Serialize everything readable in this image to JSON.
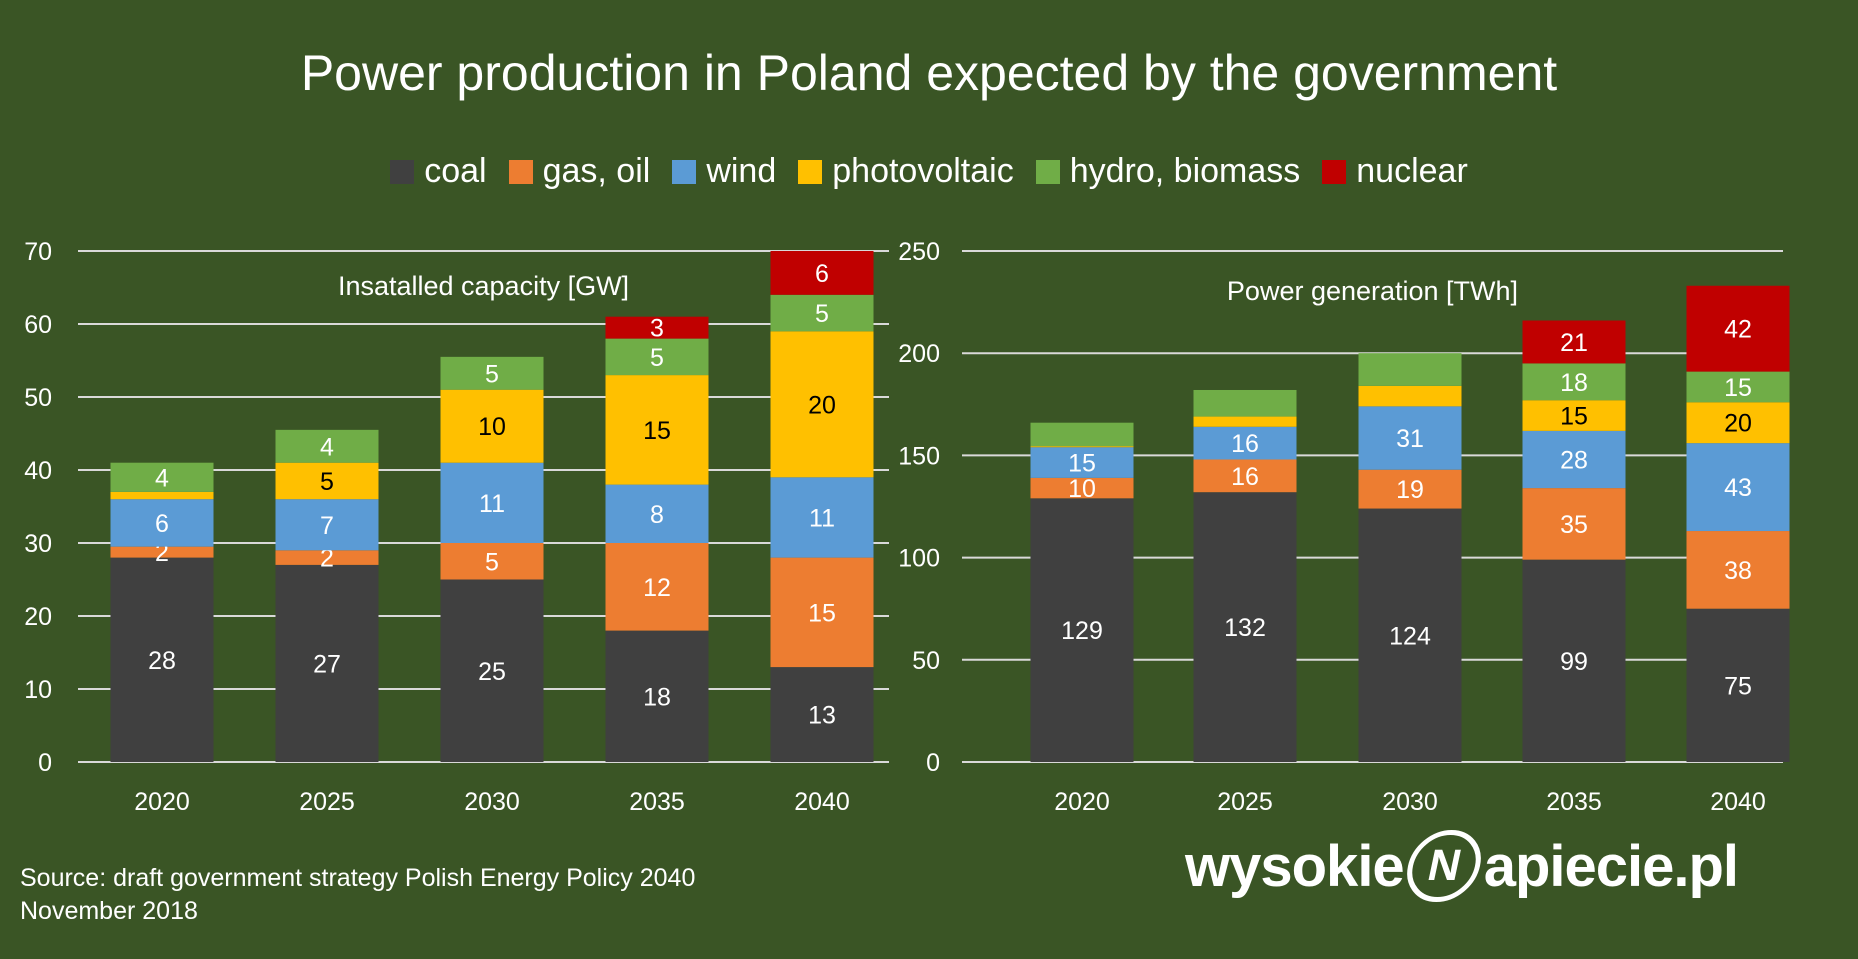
{
  "title": "Power production in Poland expected by the government",
  "legend": [
    {
      "label": "coal",
      "color": "#404040"
    },
    {
      "label": "gas, oil",
      "color": "#ed7d31"
    },
    {
      "label": "wind",
      "color": "#5b9bd5"
    },
    {
      "label": "photovoltaic",
      "color": "#ffc000"
    },
    {
      "label": "hydro, biomass",
      "color": "#70ad47"
    },
    {
      "label": "nuclear",
      "color": "#c00000"
    }
  ],
  "chart_data": [
    {
      "type": "bar",
      "stacked": true,
      "title": "Insatalled capacity [GW]",
      "categories": [
        "2020",
        "2025",
        "2030",
        "2035",
        "2040"
      ],
      "ylim": [
        0,
        70
      ],
      "yticks": [
        0,
        10,
        20,
        30,
        40,
        50,
        60,
        70
      ],
      "grid": true,
      "series": [
        {
          "name": "coal",
          "values": [
            28,
            27,
            25,
            18,
            13
          ],
          "labels": [
            "28",
            "27",
            "25",
            "18",
            "13"
          ]
        },
        {
          "name": "gas, oil",
          "values": [
            1.5,
            2,
            5,
            12,
            15
          ],
          "labels": [
            "2",
            "2",
            "5",
            "12",
            "15"
          ]
        },
        {
          "name": "wind",
          "values": [
            6.5,
            7,
            11,
            8,
            11
          ],
          "labels": [
            "6",
            "7",
            "11",
            "8",
            "11"
          ]
        },
        {
          "name": "photovoltaic",
          "values": [
            1,
            5,
            10,
            15,
            20
          ],
          "labels": [
            null,
            "5",
            "10",
            "15",
            "20"
          ]
        },
        {
          "name": "hydro, biomass",
          "values": [
            4,
            4.5,
            4.5,
            5,
            5
          ],
          "labels": [
            "4",
            "4",
            "5",
            "5",
            "5"
          ]
        },
        {
          "name": "nuclear",
          "values": [
            0,
            0,
            0,
            3,
            6
          ],
          "labels": [
            null,
            null,
            null,
            "3",
            "6"
          ]
        }
      ]
    },
    {
      "type": "bar",
      "stacked": true,
      "title": "Power generation [TWh]",
      "categories": [
        "2020",
        "2025",
        "2030",
        "2035",
        "2040"
      ],
      "ylim": [
        0,
        250
      ],
      "yticks": [
        0,
        50,
        100,
        150,
        200,
        250
      ],
      "grid": true,
      "series": [
        {
          "name": "coal",
          "values": [
            129,
            132,
            124,
            99,
            75
          ],
          "labels": [
            "129",
            "132",
            "124",
            "99",
            "75"
          ]
        },
        {
          "name": "gas, oil",
          "values": [
            10,
            16,
            19,
            35,
            38
          ],
          "labels": [
            "10",
            "16",
            "19",
            "35",
            "38"
          ]
        },
        {
          "name": "wind",
          "values": [
            15,
            16,
            31,
            28,
            43
          ],
          "labels": [
            "15",
            "16",
            "31",
            "28",
            "43"
          ]
        },
        {
          "name": "photovoltaic",
          "values": [
            0.5,
            5,
            10,
            15,
            20
          ],
          "labels": [
            null,
            null,
            null,
            "15",
            "20"
          ]
        },
        {
          "name": "hydro, biomass",
          "values": [
            11.5,
            13,
            16,
            18,
            15
          ],
          "labels": [
            null,
            null,
            null,
            "18",
            "15"
          ]
        },
        {
          "name": "nuclear",
          "values": [
            0,
            0,
            0,
            21,
            42
          ],
          "labels": [
            null,
            null,
            null,
            "21",
            "42"
          ]
        }
      ]
    }
  ],
  "source": [
    "Source: draft government strategy Polish Energy Policy 2040",
    "November 2018"
  ],
  "logo": {
    "left": "wysokie",
    "mark": "N",
    "right": "apiecie.pl"
  }
}
